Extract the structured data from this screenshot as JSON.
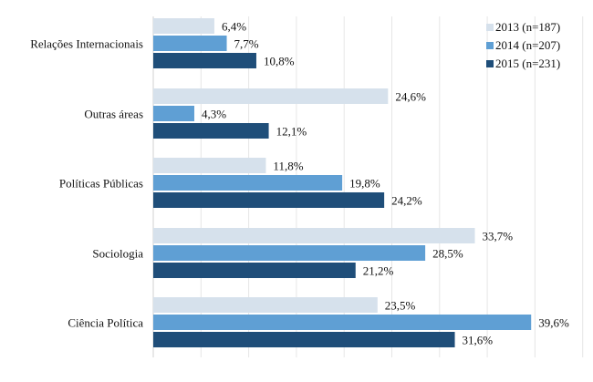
{
  "chart_data": {
    "type": "bar",
    "orientation": "horizontal",
    "title": "",
    "xlabel": "",
    "ylabel": "",
    "xlim": [
      0,
      45
    ],
    "grid_step": 5,
    "grid": true,
    "legend_position": "top-right",
    "categories": [
      "Relações Internacionais",
      "Outras áreas",
      "Políticas Públicas",
      "Sociologia",
      "Ciência Política"
    ],
    "series": [
      {
        "name": "2013 (n=187)",
        "color": "#d6e1ec",
        "values": [
          6.4,
          24.6,
          11.8,
          33.7,
          23.5
        ],
        "labels": [
          "6,4%",
          "24,6%",
          "11,8%",
          "33,7%",
          "23,5%"
        ]
      },
      {
        "name": "2014 (n=207)",
        "color": "#5f9fd4",
        "values": [
          7.7,
          4.3,
          19.8,
          28.5,
          39.6
        ],
        "labels": [
          "7,7%",
          "4,3%",
          "19,8%",
          "28,5%",
          "39,6%"
        ]
      },
      {
        "name": "2015 (n=231)",
        "color": "#1f4e79",
        "values": [
          10.8,
          12.1,
          24.2,
          21.2,
          31.6
        ],
        "labels": [
          "10,8%",
          "12,1%",
          "24,2%",
          "21,2%",
          "31,6%"
        ]
      }
    ]
  }
}
